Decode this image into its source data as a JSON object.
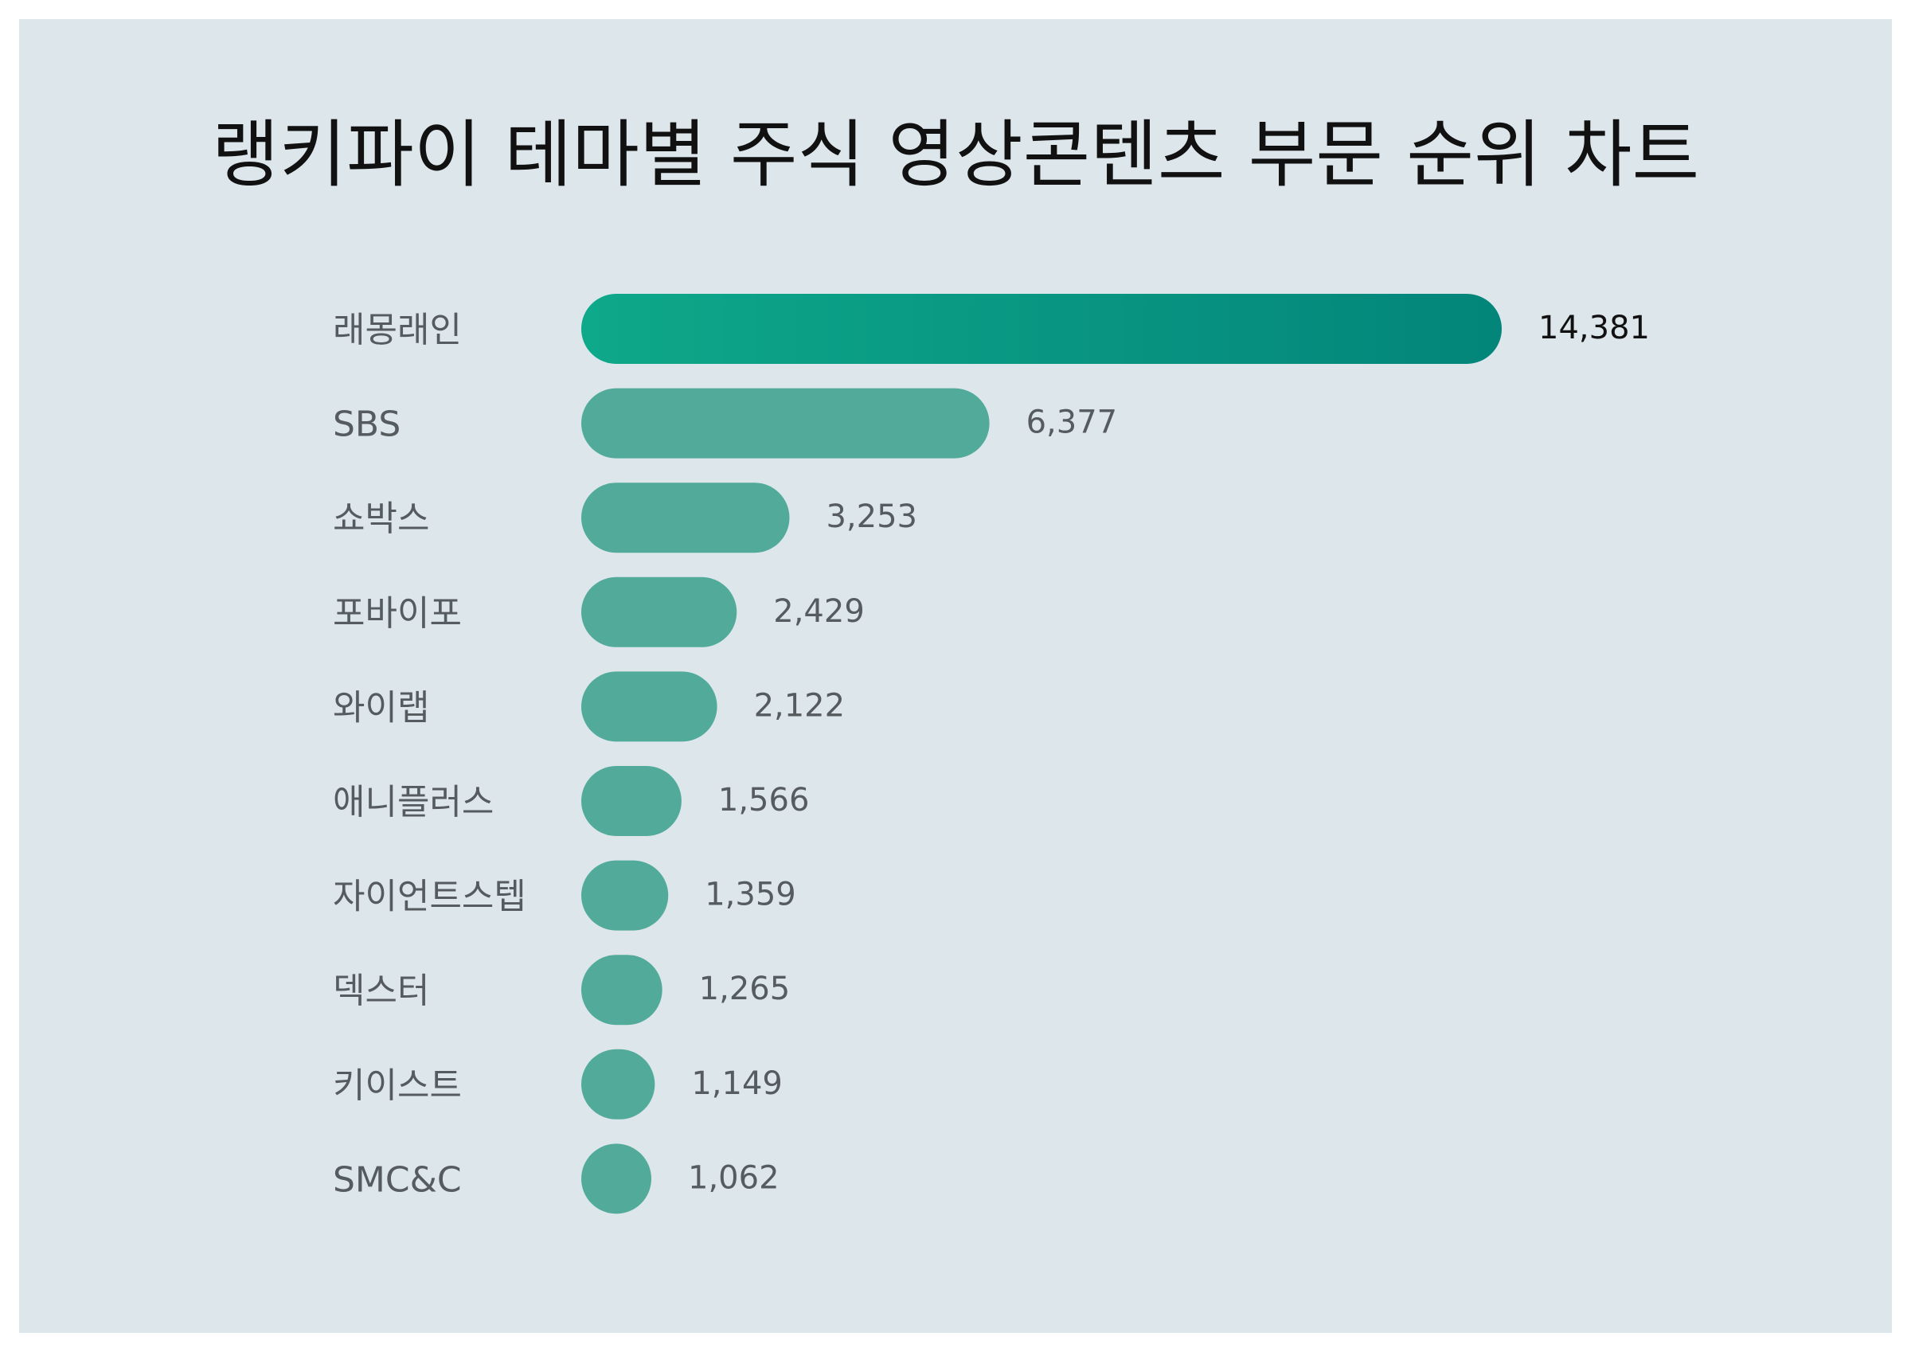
{
  "chart_data": {
    "type": "bar",
    "orientation": "horizontal",
    "title": "랭키파이 테마별 주식 영상콘텐츠 부문 순위 차트",
    "categories": [
      "래몽래인",
      "SBS",
      "쇼박스",
      "포바이포",
      "와이랩",
      "애니플러스",
      "자이언트스텝",
      "덱스터",
      "키이스트",
      "SMC&C"
    ],
    "values": [
      14381,
      6377,
      3253,
      2429,
      2122,
      1566,
      1359,
      1265,
      1149,
      1062
    ],
    "value_labels": [
      "14,381",
      "6,377",
      "3,253",
      "2,429",
      "2,122",
      "1,566",
      "1,359",
      "1,265",
      "1,149",
      "1,062"
    ],
    "grid": false,
    "legend": "none",
    "colors": {
      "background": "#dce6eb",
      "bar": "#52ab9a",
      "top_bar_gradient_start": "#0ea88a",
      "top_bar_gradient_end": "#03857a",
      "label": "#555b5e",
      "top_value_label": "#111111"
    }
  }
}
